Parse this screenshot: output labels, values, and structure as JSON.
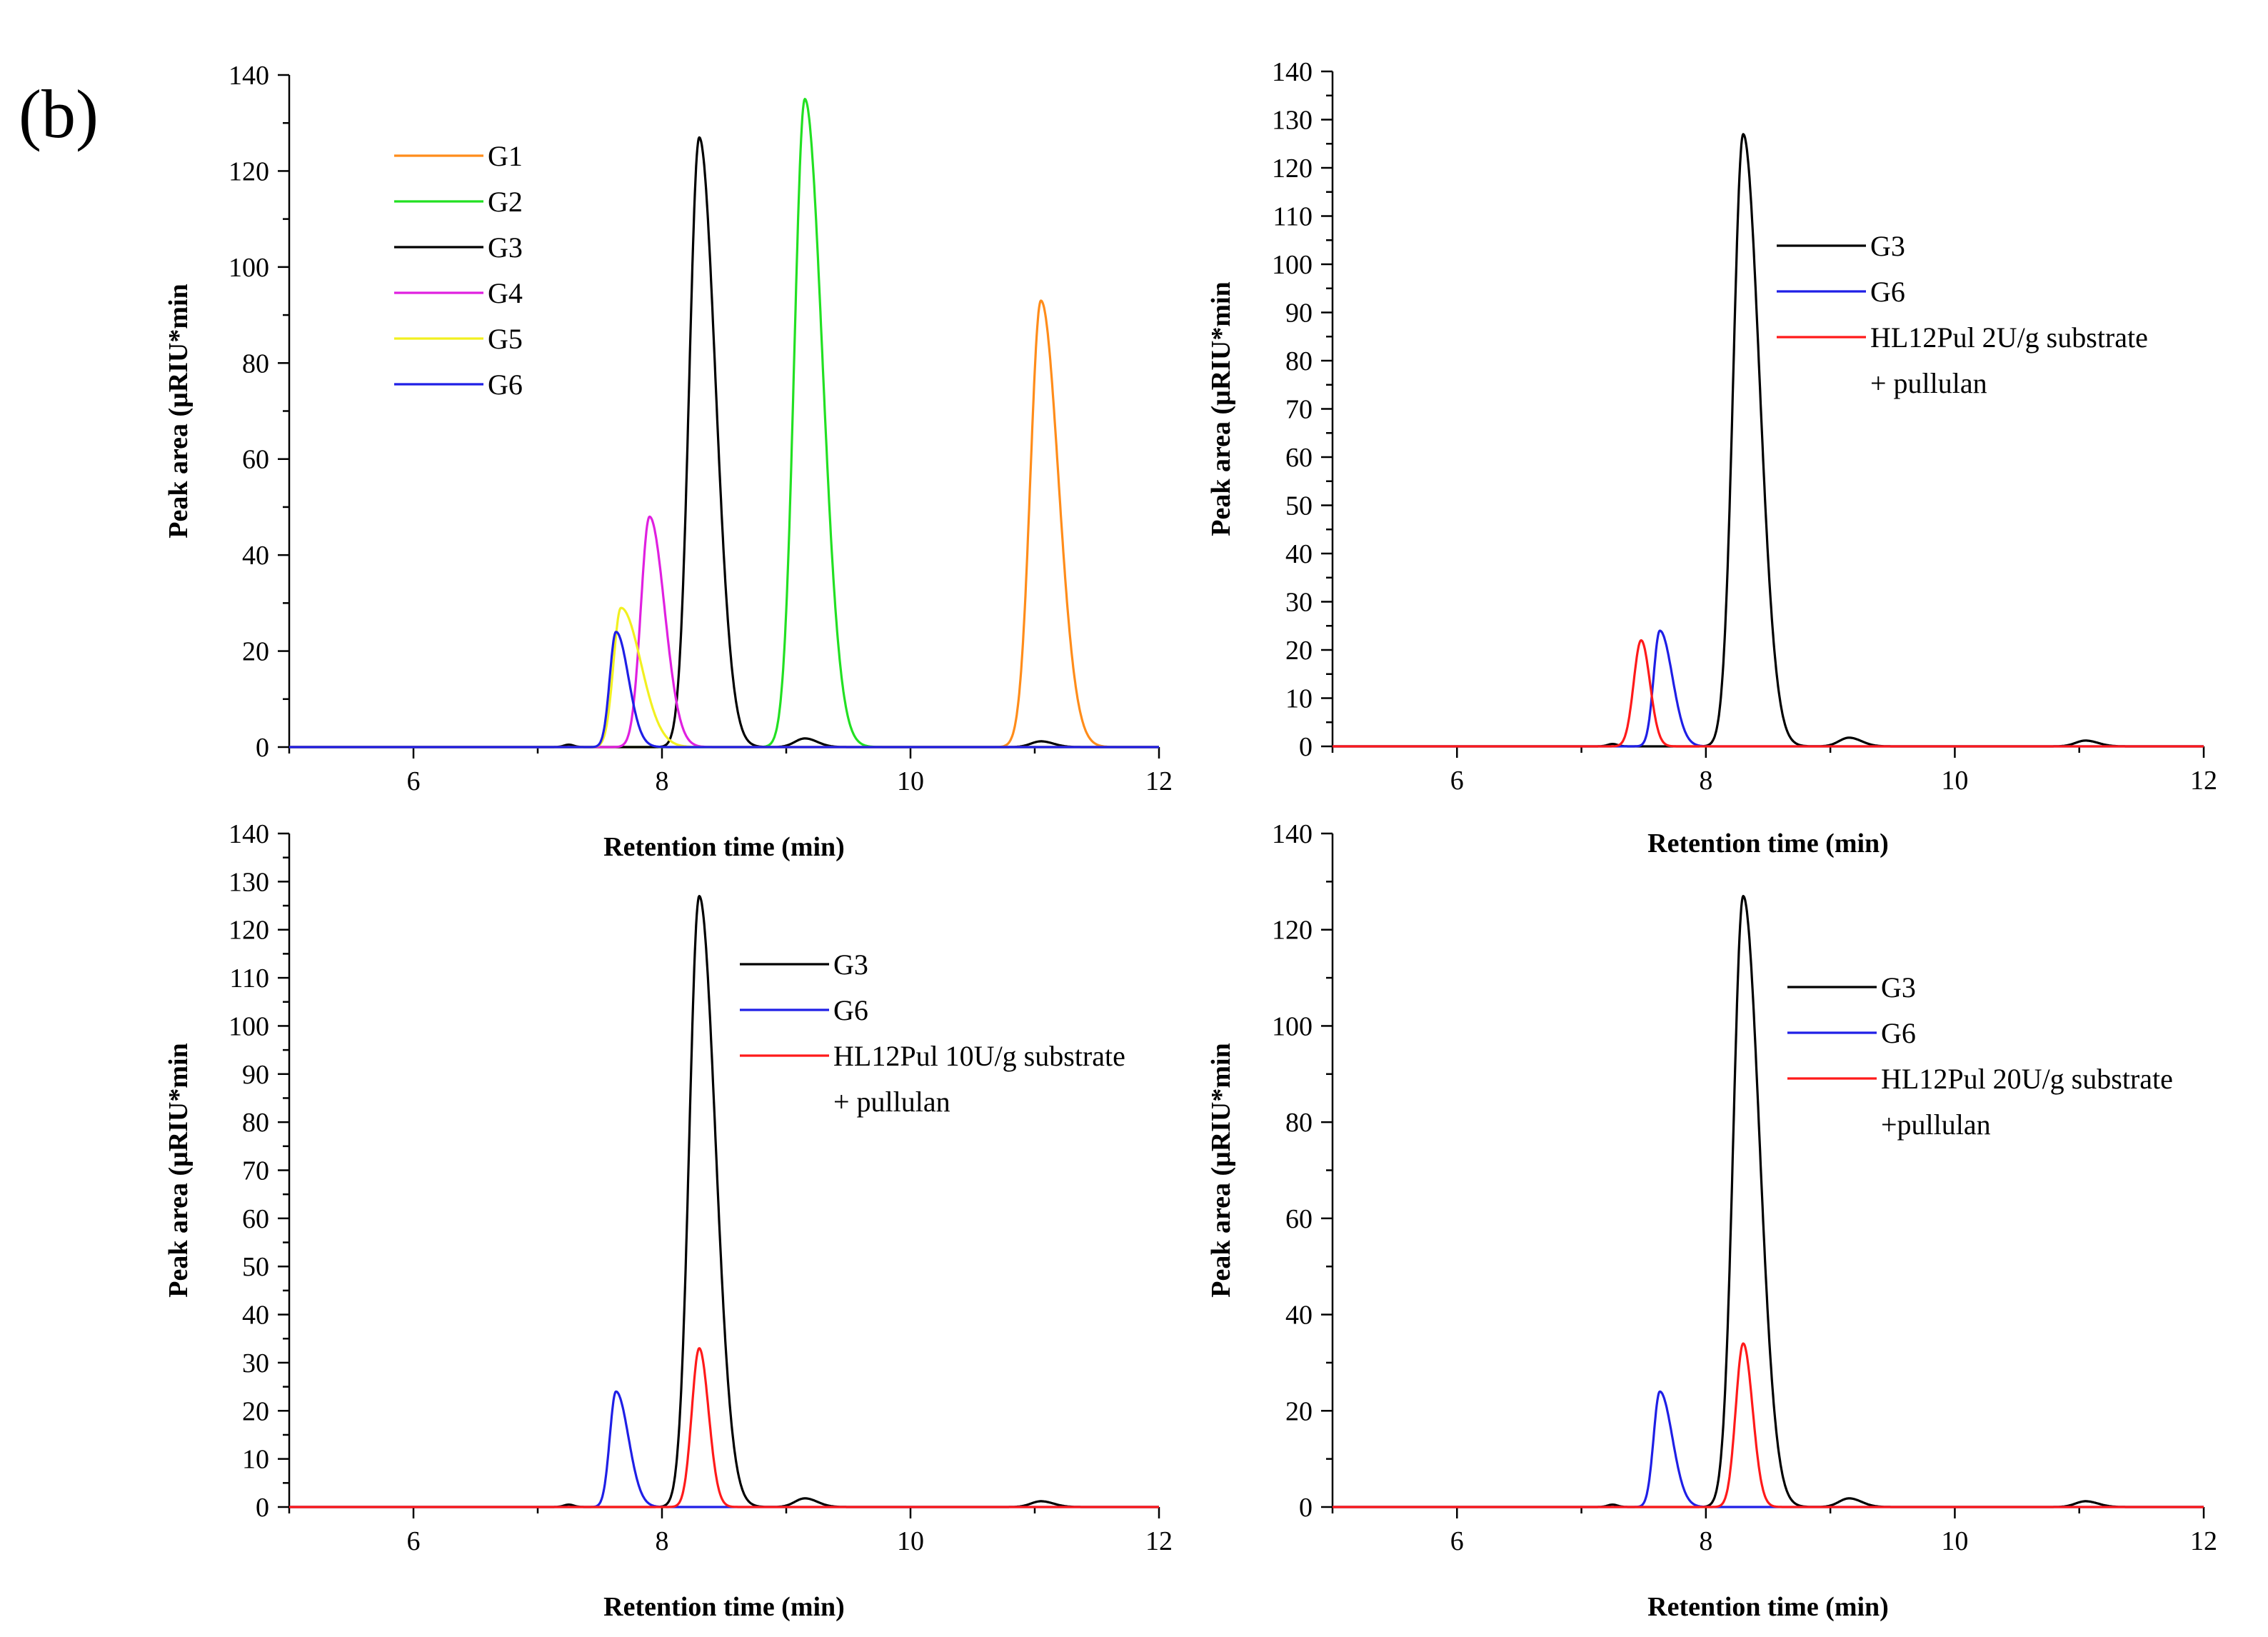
{
  "figure_label": "(b)",
  "chart_data": [
    {
      "type": "line",
      "id": "top-left",
      "title": "",
      "xlabel": "Retention time (min)",
      "ylabel": "Peak area (μRIU*min",
      "xlim": [
        5,
        12
      ],
      "ylim": [
        0,
        140
      ],
      "xticks": [
        6,
        8,
        10,
        12
      ],
      "yticks": [
        0,
        20,
        40,
        60,
        80,
        100,
        120,
        140
      ],
      "grid": false,
      "legend_position": "top-left",
      "series": [
        {
          "name": "G1",
          "color": "#ff8c1a",
          "peaks": [
            {
              "center": 11.05,
              "height": 93,
              "width_left": 0.085,
              "width_right": 0.14
            }
          ]
        },
        {
          "name": "G2",
          "color": "#22e022",
          "peaks": [
            {
              "center": 9.15,
              "height": 135,
              "width_left": 0.085,
              "width_right": 0.14
            }
          ]
        },
        {
          "name": "G3",
          "color": "#000000",
          "peaks": [
            {
              "center": 7.25,
              "height": 0.5,
              "width_left": 0.04,
              "width_right": 0.04
            },
            {
              "center": 8.3,
              "height": 127,
              "width_left": 0.08,
              "width_right": 0.13
            },
            {
              "center": 9.15,
              "height": 1.8,
              "width_left": 0.08,
              "width_right": 0.1
            },
            {
              "center": 11.05,
              "height": 1.2,
              "width_left": 0.08,
              "width_right": 0.1
            }
          ]
        },
        {
          "name": "G4",
          "color": "#e020e0",
          "peaks": [
            {
              "center": 7.9,
              "height": 48,
              "width_left": 0.07,
              "width_right": 0.12
            }
          ]
        },
        {
          "name": "G5",
          "color": "#f2f020",
          "peaks": [
            {
              "center": 7.67,
              "height": 29,
              "width_left": 0.06,
              "width_right": 0.16
            }
          ]
        },
        {
          "name": "G6",
          "color": "#1f1fe6",
          "peaks": [
            {
              "center": 7.63,
              "height": 24,
              "width_left": 0.05,
              "width_right": 0.1
            }
          ]
        }
      ]
    },
    {
      "type": "line",
      "id": "top-right",
      "title": "",
      "xlabel": "Retention time (min)",
      "ylabel": "Peak area (μRIU*min",
      "xlim": [
        5,
        12
      ],
      "ylim": [
        0,
        140
      ],
      "xticks": [
        6,
        8,
        10,
        12
      ],
      "yticks": [
        0,
        10,
        20,
        30,
        40,
        50,
        60,
        70,
        80,
        90,
        100,
        110,
        120,
        130,
        140
      ],
      "grid": false,
      "legend_position": "top-right",
      "series": [
        {
          "name": "G3",
          "color": "#000000",
          "peaks": [
            {
              "center": 7.25,
              "height": 0.5,
              "width_left": 0.04,
              "width_right": 0.04
            },
            {
              "center": 8.3,
              "height": 127,
              "width_left": 0.08,
              "width_right": 0.13
            },
            {
              "center": 9.15,
              "height": 1.8,
              "width_left": 0.08,
              "width_right": 0.1
            },
            {
              "center": 11.05,
              "height": 1.2,
              "width_left": 0.08,
              "width_right": 0.1
            }
          ]
        },
        {
          "name": "G6",
          "color": "#1f1fe6",
          "peaks": [
            {
              "center": 7.63,
              "height": 24,
              "width_left": 0.05,
              "width_right": 0.1
            }
          ]
        },
        {
          "name": "HL12Pul 2U/g substrate",
          "name_line2": "+ pullulan",
          "color": "#ff1a1a",
          "peaks": [
            {
              "center": 7.48,
              "height": 22,
              "width_left": 0.06,
              "width_right": 0.07
            }
          ]
        }
      ]
    },
    {
      "type": "line",
      "id": "bottom-left",
      "title": "",
      "xlabel": "Retention time (min)",
      "ylabel": "Peak area (μRIU*min",
      "xlim": [
        5,
        12
      ],
      "ylim": [
        0,
        140
      ],
      "xticks": [
        6,
        8,
        10,
        12
      ],
      "yticks": [
        0,
        10,
        20,
        30,
        40,
        50,
        60,
        70,
        80,
        90,
        100,
        110,
        120,
        130,
        140
      ],
      "grid": false,
      "legend_position": "top-right",
      "series": [
        {
          "name": "G3",
          "color": "#000000",
          "peaks": [
            {
              "center": 7.25,
              "height": 0.5,
              "width_left": 0.04,
              "width_right": 0.04
            },
            {
              "center": 8.3,
              "height": 127,
              "width_left": 0.08,
              "width_right": 0.13
            },
            {
              "center": 9.15,
              "height": 1.8,
              "width_left": 0.08,
              "width_right": 0.1
            },
            {
              "center": 11.05,
              "height": 1.2,
              "width_left": 0.08,
              "width_right": 0.1
            }
          ]
        },
        {
          "name": "G6",
          "color": "#1f1fe6",
          "peaks": [
            {
              "center": 7.63,
              "height": 24,
              "width_left": 0.05,
              "width_right": 0.1
            }
          ]
        },
        {
          "name": "HL12Pul 10U/g substrate",
          "name_line2": "+ pullulan",
          "color": "#ff1a1a",
          "peaks": [
            {
              "center": 8.3,
              "height": 33,
              "width_left": 0.06,
              "width_right": 0.075
            }
          ]
        }
      ]
    },
    {
      "type": "line",
      "id": "bottom-right",
      "title": "",
      "xlabel": "Retention time (min)",
      "ylabel": "Peak area (μRIU*min",
      "xlim": [
        5,
        12
      ],
      "ylim": [
        0,
        140
      ],
      "xticks": [
        6,
        8,
        10,
        12
      ],
      "yticks": [
        0,
        20,
        40,
        60,
        80,
        100,
        120,
        140
      ],
      "grid": false,
      "legend_position": "top-right",
      "series": [
        {
          "name": "G3",
          "color": "#000000",
          "peaks": [
            {
              "center": 7.25,
              "height": 0.5,
              "width_left": 0.04,
              "width_right": 0.04
            },
            {
              "center": 8.3,
              "height": 127,
              "width_left": 0.08,
              "width_right": 0.13
            },
            {
              "center": 9.15,
              "height": 1.8,
              "width_left": 0.08,
              "width_right": 0.1
            },
            {
              "center": 11.05,
              "height": 1.2,
              "width_left": 0.08,
              "width_right": 0.1
            }
          ]
        },
        {
          "name": "G6",
          "color": "#1f1fe6",
          "peaks": [
            {
              "center": 7.63,
              "height": 24,
              "width_left": 0.05,
              "width_right": 0.1
            }
          ]
        },
        {
          "name": "HL12Pul 20U/g substrate",
          "name_line2": "+pullulan",
          "color": "#ff1a1a",
          "peaks": [
            {
              "center": 8.3,
              "height": 34,
              "width_left": 0.06,
              "width_right": 0.075
            }
          ]
        }
      ]
    }
  ]
}
